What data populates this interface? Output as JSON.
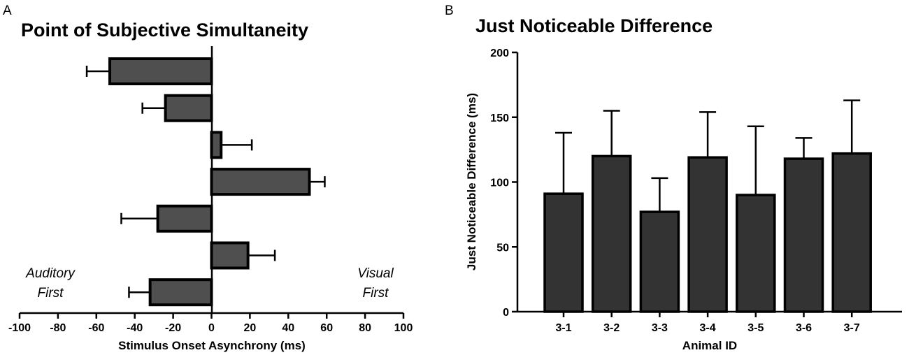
{
  "figure": {
    "panel_a_letter": "A",
    "panel_b_letter": "B"
  },
  "chart_data": [
    {
      "type": "bar",
      "orientation": "horizontal",
      "title": "Point of Subjective Simultaneity",
      "xlabel": "Stimulus Onset Asynchrony (ms)",
      "ylabel": "",
      "xlim": [
        -100,
        100
      ],
      "xticks": [
        -100,
        -80,
        -60,
        -40,
        -20,
        0,
        20,
        40,
        60,
        80,
        100
      ],
      "tick_labels": [
        "-100",
        "-80",
        "-60",
        "-40",
        "-20",
        "0",
        "20",
        "40",
        "60",
        "80",
        "100"
      ],
      "values": [
        -53,
        -24,
        5,
        51,
        -28,
        19,
        -32
      ],
      "errors": [
        12,
        12,
        16,
        8,
        19,
        14,
        11
      ],
      "annotations": {
        "left_line1": "Auditory",
        "left_line2": "First",
        "right_line1": "Visual",
        "right_line2": "First"
      }
    },
    {
      "type": "bar",
      "title": "Just Noticeable Difference",
      "xlabel": "Animal ID",
      "ylabel": "Just Noticeable Difference (ms)",
      "ylim": [
        0,
        200
      ],
      "yticks": [
        0,
        50,
        100,
        150,
        200
      ],
      "tick_labels": [
        "0",
        "50",
        "100",
        "150",
        "200"
      ],
      "categories": [
        "3-1",
        "3-2",
        "3-3",
        "3-4",
        "3-5",
        "3-6",
        "3-7"
      ],
      "values": [
        91,
        120,
        77,
        119,
        90,
        118,
        122
      ],
      "errors": [
        47,
        35,
        26,
        35,
        53,
        16,
        41
      ]
    }
  ]
}
